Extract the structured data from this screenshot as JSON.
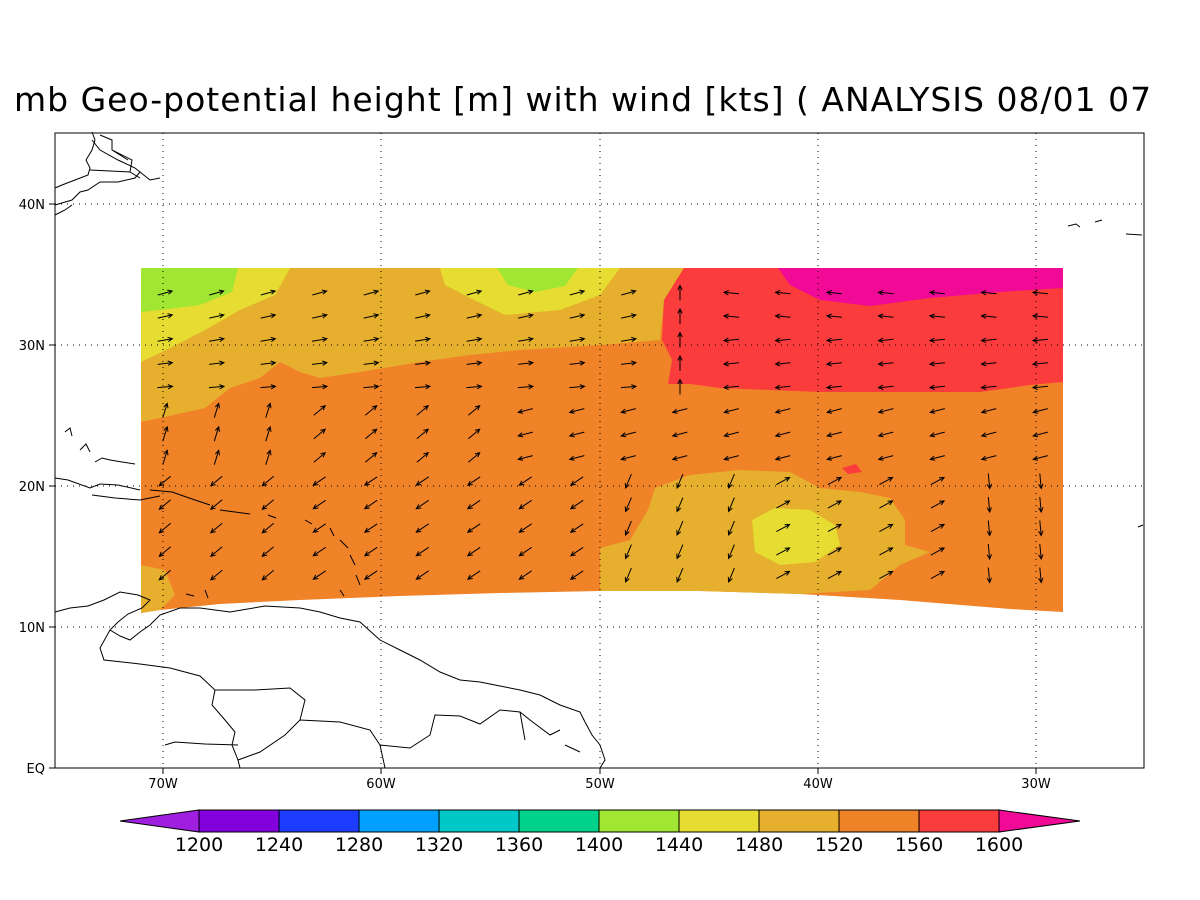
{
  "title": "mb Geo-potential height [m] with wind [kts] ( ANALYSIS 08/01 07",
  "axes": {
    "lon_ticks": [
      "70W",
      "60W",
      "50W",
      "40W",
      "30W"
    ],
    "lat_ticks": [
      "EQ",
      "10N",
      "20N",
      "30N",
      "40N"
    ]
  },
  "colorbar": {
    "labels": [
      "1200",
      "1240",
      "1280",
      "1320",
      "1360",
      "1400",
      "1440",
      "1480",
      "1520",
      "1560",
      "1600"
    ],
    "colors": [
      "#a01ee0",
      "#8200dc",
      "#1e3cff",
      "#00a0ff",
      "#00c8c8",
      "#00d28c",
      "#a0e632",
      "#e6dc32",
      "#e6af2d",
      "#f08228",
      "#fa3c3c",
      "#f00a96"
    ]
  },
  "colors": {
    "h1440": "#a0e632",
    "h1480": "#e6dc32",
    "h1520": "#e6af2d",
    "h1560": "#f08228",
    "h1600": "#fa3c3c",
    "h1640": "#f00a96",
    "land": "#000000",
    "grid": "#000000"
  }
}
